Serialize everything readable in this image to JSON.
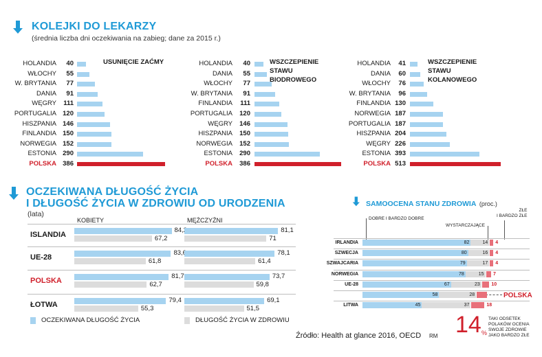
{
  "section1": {
    "title": "KOLEJKI DO LEKARZY",
    "subtitle": "(średnia liczba dni oczekiwania na zabieg; dane za 2015 r.)"
  },
  "section2": {
    "title_line1": "OCZEKIWANA DŁUGOŚĆ ŻYCIA",
    "title_line2": "I DŁUGOŚĆ ŻYCIA W ZDROWIU OD URODZENIA",
    "unit": "(lata)",
    "col_women": "KOBIETY",
    "col_men": "MĘŻCZYŹNI",
    "legend_expected": "OCZEKIWANA DŁUGOŚĆ ŻYCIA",
    "legend_healthy": "DŁUGOŚĆ ŻYCIA W ZDROWIU"
  },
  "section3": {
    "title": "SAMOOCENA STANU ZDROWIA",
    "title_unit": "(proc.)",
    "label_good": "DOBRE I BARDZO DOBRE",
    "label_sufficient": "WYSTARCZAJĄCE",
    "label_bad": "ZŁE\nI BARDZO ZŁE",
    "polska_label": "POLSKA",
    "big_number": "14",
    "big_unit": "%",
    "note": "TAKI ODSETEK\nPOLAKÓW OCENIA\nSWOJE ZDROWIE\nJAKO BARDZO ZŁE"
  },
  "source": "Źródło: Health at glance 2016, OECD",
  "author": "RM",
  "colors": {
    "accent_blue": "#1f9ad6",
    "bar_blue": "#a6d3f0",
    "bar_gray": "#dcdcdc",
    "polska_red": "#d0202b",
    "bad_red": "#e8707a"
  },
  "chart_data": [
    {
      "type": "bar",
      "title": "USUNIĘCIE ZAĆMY",
      "categories": [
        "HOLANDIA",
        "WŁOCHY",
        "W. BRYTANIA",
        "DANIA",
        "WĘGRY",
        "PORTUGALIA",
        "HISZPANIA",
        "FINLANDIA",
        "NORWEGIA",
        "ESTONIA",
        "POLSKA"
      ],
      "values": [
        40,
        55,
        77,
        91,
        111,
        120,
        146,
        150,
        152,
        290,
        386
      ],
      "highlight": "POLSKA",
      "orientation": "horizontal"
    },
    {
      "type": "bar",
      "title": "WSZCZEPIENIE STAWU BIODROWEGO",
      "categories": [
        "HOLANDIA",
        "DANIA",
        "WŁOCHY",
        "W. BRYTANIA",
        "FINLANDIA",
        "PORTUGALIA",
        "WĘGRY",
        "HISZPANIA",
        "NORWEGIA",
        "ESTONIA",
        "POLSKA"
      ],
      "values": [
        40,
        55,
        77,
        91,
        111,
        120,
        146,
        150,
        152,
        290,
        386
      ],
      "highlight": "POLSKA",
      "orientation": "horizontal"
    },
    {
      "type": "bar",
      "title": "WSZCZEPIENIE STAWU KOLANOWEGO",
      "categories": [
        "HOLANDIA",
        "DANIA",
        "WŁOCHY",
        "W. BRYTANIA",
        "FINLANDIA",
        "NORWEGIA",
        "PORTUGALIA",
        "HISZPANIA",
        "WĘGRY",
        "ESTONIA",
        "POLSKA"
      ],
      "values": [
        41,
        60,
        76,
        96,
        130,
        187,
        187,
        204,
        226,
        393,
        513
      ],
      "highlight": "POLSKA",
      "orientation": "horizontal"
    },
    {
      "type": "bar",
      "orientation": "horizontal",
      "categories": [
        "ISLANDIA",
        "UE-28",
        "POLSKA",
        "ŁOTWA"
      ],
      "groups": [
        "KOBIETY",
        "MĘŻCZYŹNI"
      ],
      "series": [
        {
          "name": "OCZEKIWANA DŁUGOŚĆ ŻYCIA",
          "women": [
            "84,2",
            "83,6",
            "81,7",
            "79,4"
          ],
          "men": [
            "81,1",
            "78,1",
            "73,7",
            "69,1"
          ]
        },
        {
          "name": "DŁUGOŚĆ ŻYCIA W ZDROWIU",
          "women": [
            "67,2",
            "61,8",
            "62,7",
            "55,3"
          ],
          "men": [
            "71",
            "61,4",
            "59,8",
            "51,5"
          ]
        }
      ],
      "highlight": "POLSKA"
    },
    {
      "type": "bar",
      "orientation": "horizontal",
      "stacked": true,
      "categories": [
        "IRLANDIA",
        "SZWECJA",
        "SZWAJCARIA",
        "NORWEGIA",
        "UE-28",
        "POLSKA",
        "LITWA"
      ],
      "series": [
        {
          "name": "DOBRE I BARDZO DOBRE",
          "values": [
            82,
            80,
            79,
            78,
            67,
            58,
            45
          ]
        },
        {
          "name": "WYSTARCZAJĄCE",
          "values": [
            14,
            16,
            17,
            15,
            23,
            28,
            37
          ]
        },
        {
          "name": "ZŁE I BARDZO ZŁE",
          "values": [
            4,
            4,
            4,
            7,
            10,
            14,
            18
          ]
        }
      ],
      "highlight": "POLSKA"
    }
  ]
}
